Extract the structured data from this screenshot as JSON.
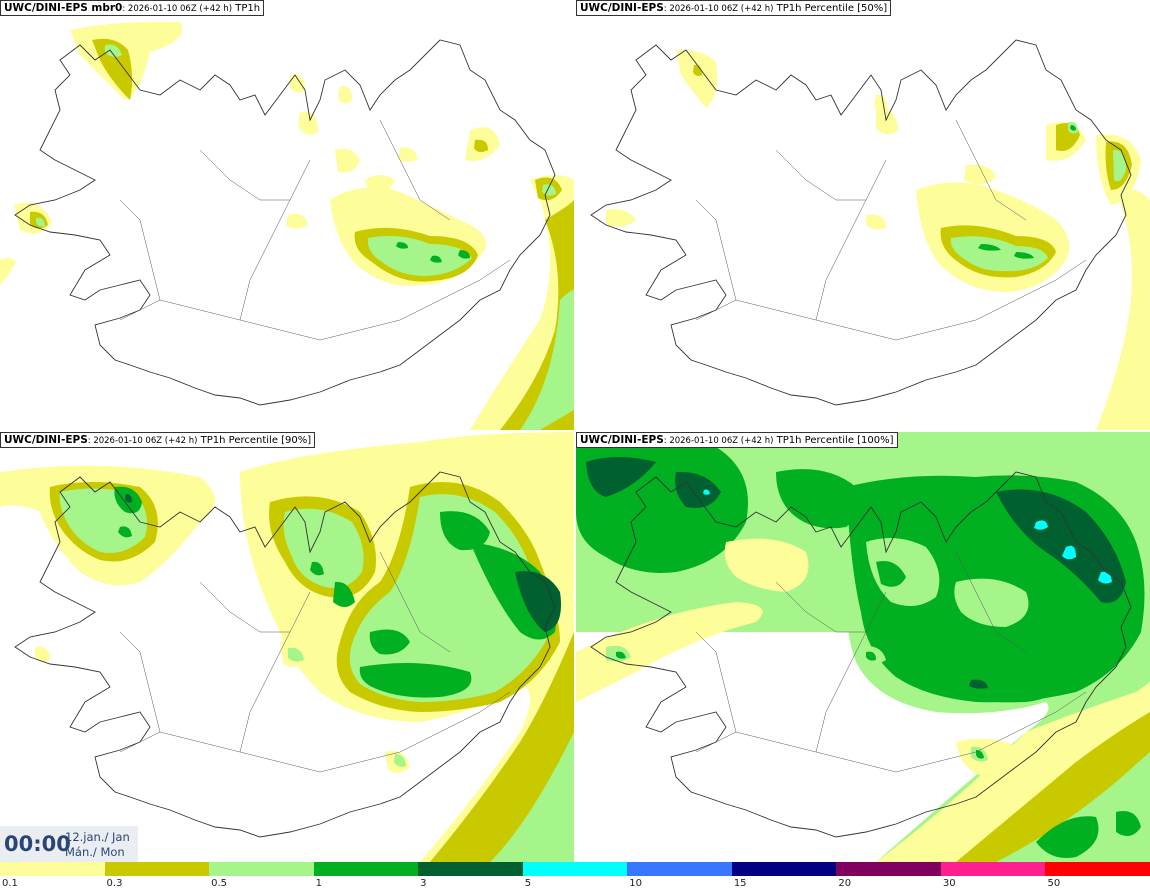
{
  "panels": [
    {
      "model": "UWC/DINI-EPS mbr0",
      "meta": ": 2026-01-10 06Z (+42 h)",
      "field": "TP1h"
    },
    {
      "model": "UWC/DINI-EPS",
      "meta": ": 2026-01-10 06Z (+42 h)",
      "field": "TP1h Percentile [50%]"
    },
    {
      "model": "UWC/DINI-EPS",
      "meta": ": 2026-01-10 06Z (+42 h)",
      "field": "TP1h Percentile [90%]"
    },
    {
      "model": "UWC/DINI-EPS",
      "meta": ": 2026-01-10 06Z (+42 h)",
      "field": "TP1h Percentile [100%]"
    }
  ],
  "valid_time": {
    "time": "00:00",
    "date_line": "12.jan./ Jan",
    "day_line": "Mán./ Mon"
  },
  "legend": {
    "colors": [
      "#fdfd9a",
      "#c9c900",
      "#a5f58a",
      "#00b020",
      "#006030",
      "#00ffff",
      "#3878ff",
      "#000080",
      "#800060",
      "#ff2090",
      "#ff0000"
    ],
    "labels": [
      "0.1",
      "0.3",
      "0.5",
      "1",
      "3",
      "5",
      "10",
      "15",
      "20",
      "30",
      "50"
    ]
  },
  "precip_colors": {
    "light": "#fdfd9a",
    "olive": "#c9c900",
    "lightgreen": "#a5f58a",
    "green": "#00b020",
    "darkgreen": "#006030",
    "cyan": "#00ffff"
  }
}
